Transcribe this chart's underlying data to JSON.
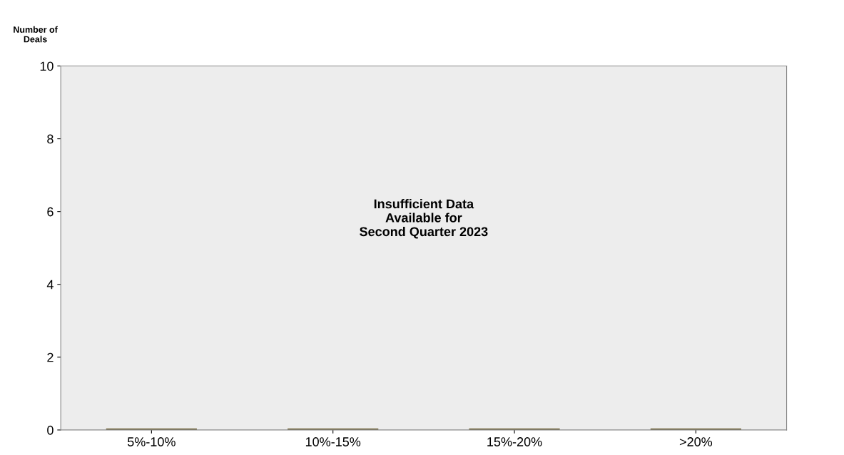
{
  "chart_data": {
    "type": "bar",
    "ylabel": "Number of Deals",
    "categories": [
      "5%-10%",
      "10%-15%",
      "15%-20%",
      ">20%"
    ],
    "values": [
      0,
      0,
      0,
      0
    ],
    "color": "#756a40",
    "ylim": [
      0,
      10
    ],
    "yticks": [
      0,
      2,
      4,
      6,
      8,
      10
    ],
    "grid": false,
    "annotations": [
      "Insufficient Data\nAvailable for\nSecond Quarter 2023"
    ]
  }
}
